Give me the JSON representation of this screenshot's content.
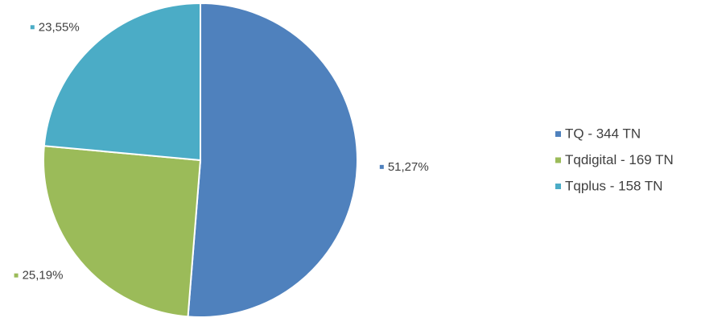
{
  "chart_data": {
    "type": "pie",
    "categories": [
      "TQ - 344 TN",
      "Tqdigital - 169 TN",
      "Tqplus - 158 TN"
    ],
    "values": [
      51.27,
      25.19,
      23.55
    ],
    "value_labels": [
      "51,27%",
      "25,19%",
      "23,55%"
    ],
    "colors": [
      "#4f81bd",
      "#9bbb59",
      "#4bacc6"
    ],
    "legend": "right"
  }
}
